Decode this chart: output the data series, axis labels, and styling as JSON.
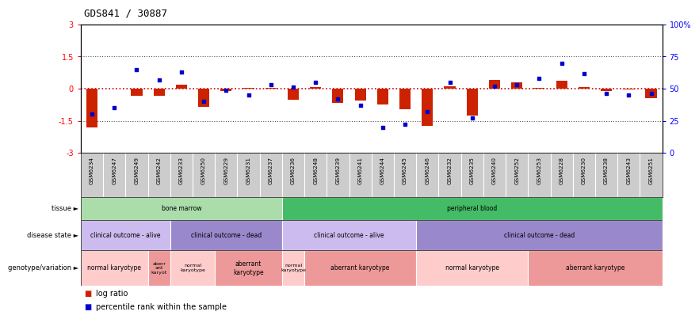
{
  "title": "GDS841 / 30887",
  "samples": [
    "GSM6234",
    "GSM6247",
    "GSM6249",
    "GSM6242",
    "GSM6233",
    "GSM6250",
    "GSM6229",
    "GSM6231",
    "GSM6237",
    "GSM6236",
    "GSM6248",
    "GSM6239",
    "GSM6241",
    "GSM6244",
    "GSM6245",
    "GSM6246",
    "GSM6232",
    "GSM6235",
    "GSM6240",
    "GSM6252",
    "GSM6253",
    "GSM6228",
    "GSM6230",
    "GSM6238",
    "GSM6243",
    "GSM6251"
  ],
  "log_ratio": [
    -1.8,
    0.0,
    -0.35,
    -0.35,
    0.18,
    -0.85,
    -0.12,
    0.05,
    0.05,
    -0.5,
    0.08,
    -0.65,
    -0.55,
    -0.75,
    -0.95,
    -1.75,
    0.12,
    -1.25,
    0.42,
    0.28,
    0.02,
    0.38,
    0.08,
    -0.12,
    -0.05,
    -0.45
  ],
  "percentile": [
    30,
    35,
    65,
    57,
    63,
    40,
    49,
    45,
    53,
    51,
    55,
    42,
    37,
    20,
    22,
    32,
    55,
    27,
    52,
    53,
    58,
    70,
    62,
    46,
    45,
    46
  ],
  "ylim": [
    -3,
    3
  ],
  "yticks": [
    -3,
    -1.5,
    0,
    1.5,
    3
  ],
  "ytick_labels": [
    "-3",
    "-1.5",
    "0",
    "1.5",
    "3"
  ],
  "y2ticks": [
    0,
    25,
    50,
    75,
    100
  ],
  "y2tick_labels": [
    "0",
    "25",
    "50",
    "75",
    "100%"
  ],
  "bar_color": "#cc2200",
  "dot_color": "#0000cc",
  "hline_color": "#cc0000",
  "dotted_color": "#555555",
  "tissue_groups": [
    {
      "label": "bone marrow",
      "start": 0,
      "end": 9,
      "color": "#aaddaa"
    },
    {
      "label": "peripheral blood",
      "start": 9,
      "end": 26,
      "color": "#44bb66"
    }
  ],
  "disease_groups": [
    {
      "label": "clinical outcome - alive",
      "start": 0,
      "end": 4,
      "color": "#ccbbee"
    },
    {
      "label": "clinical outcome - dead",
      "start": 4,
      "end": 9,
      "color": "#9988cc"
    },
    {
      "label": "clinical outcome - alive",
      "start": 9,
      "end": 15,
      "color": "#ccbbee"
    },
    {
      "label": "clinical outcome - dead",
      "start": 15,
      "end": 26,
      "color": "#9988cc"
    }
  ],
  "genotype_groups": [
    {
      "label": "normal karyotype",
      "start": 0,
      "end": 3,
      "color": "#ffcccc"
    },
    {
      "label": "aberr\nant\nkaryot",
      "start": 3,
      "end": 4,
      "color": "#ee9999"
    },
    {
      "label": "normal\nkaryotype",
      "start": 4,
      "end": 6,
      "color": "#ffcccc"
    },
    {
      "label": "aberrant\nkaryotype",
      "start": 6,
      "end": 9,
      "color": "#ee9999"
    },
    {
      "label": "normal\nkaryotype",
      "start": 9,
      "end": 10,
      "color": "#ffcccc"
    },
    {
      "label": "aberrant karyotype",
      "start": 10,
      "end": 15,
      "color": "#ee9999"
    },
    {
      "label": "normal karyotype",
      "start": 15,
      "end": 20,
      "color": "#ffcccc"
    },
    {
      "label": "aberrant karyotype",
      "start": 20,
      "end": 26,
      "color": "#ee9999"
    }
  ],
  "row_labels": [
    "tissue",
    "disease state",
    "genotype/variation"
  ],
  "legend": [
    {
      "color": "#cc2200",
      "label": "log ratio"
    },
    {
      "color": "#0000cc",
      "label": "percentile rank within the sample"
    }
  ],
  "xtick_bg": "#cccccc"
}
